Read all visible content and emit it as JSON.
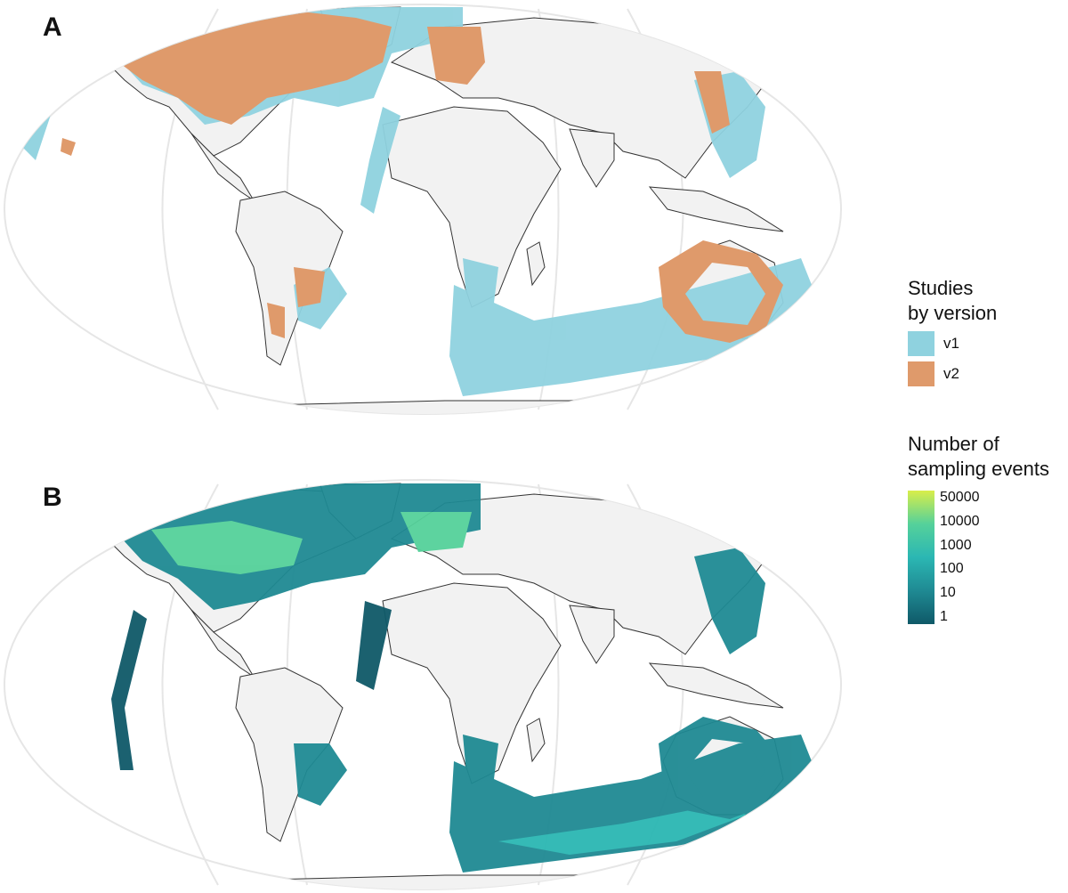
{
  "panels": {
    "a": {
      "letter": "A",
      "legend_title": "Studies\nby version",
      "legend": [
        {
          "label": "v1",
          "color": "#8fd2df"
        },
        {
          "label": "v2",
          "color": "#df9a6b"
        }
      ]
    },
    "b": {
      "letter": "B",
      "legend_title": "Number of\nsampling events",
      "colorbar_ticks": [
        "50000",
        "10000",
        "1000",
        "100",
        "10",
        "1"
      ],
      "colorbar_colors": [
        "#d9ee4a",
        "#55d19a",
        "#2bb7b3",
        "#1f8a93",
        "#0f5968"
      ]
    }
  },
  "colors": {
    "land": "#f2f2f2",
    "border": "#333333",
    "graticule": "#e6e6e6",
    "v1": "#8fd2df",
    "v2": "#df9a6b"
  }
}
